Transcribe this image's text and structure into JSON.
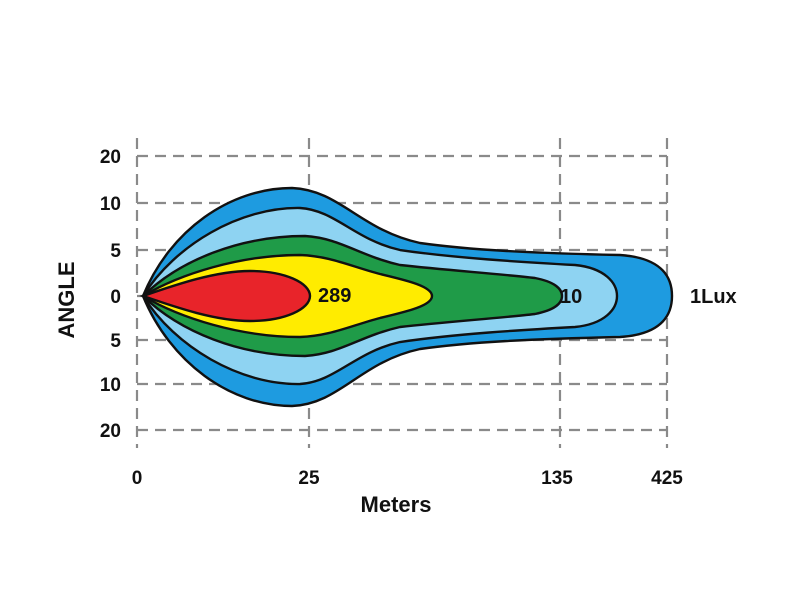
{
  "chart_data": {
    "type": "isolux",
    "xlabel": "Meters",
    "ylabel": "ANGLE",
    "x_ticks": [
      "0",
      "25",
      "135",
      "425"
    ],
    "y_ticks": [
      "20",
      "10",
      "5",
      "0",
      "5",
      "10",
      "20"
    ],
    "grid": true,
    "annotations": [
      "289",
      "10",
      "1Lux"
    ],
    "zones": [
      {
        "color": "#1E9BE0",
        "reach_tick": "425",
        "annotation": "1Lux"
      },
      {
        "color": "#8ED3F2",
        "reach_tick": "135"
      },
      {
        "color": "#1F9B48",
        "reach_tick": "135",
        "annotation": "10"
      },
      {
        "color": "#FFEC00",
        "reach_tick": "25"
      },
      {
        "color": "#E8242A",
        "reach_tick": "25",
        "annotation": "289"
      }
    ]
  }
}
